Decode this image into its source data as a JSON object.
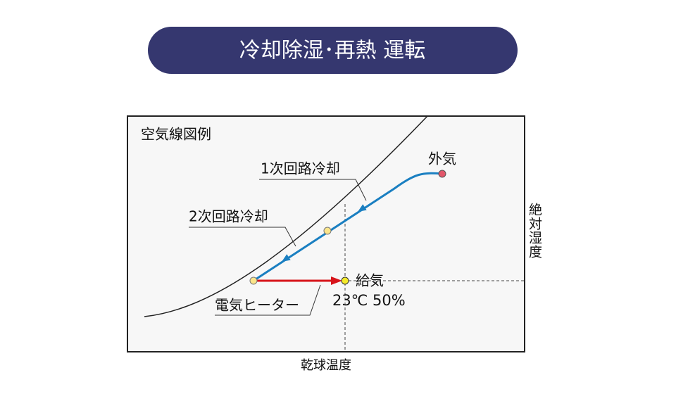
{
  "header": {
    "title": "冷却除湿･再熱 運転"
  },
  "diagram": {
    "legend_title": "空気線図例",
    "labels": {
      "primary_cooling": "1次回路冷却",
      "secondary_cooling": "2次回路冷却",
      "outside_air": "外気",
      "supply_air": "給気",
      "supply_condition": "23℃ 50%",
      "electric_heater": "電気ヒーター"
    },
    "axes": {
      "y": "絶対湿度",
      "x": "乾球温度"
    }
  }
}
